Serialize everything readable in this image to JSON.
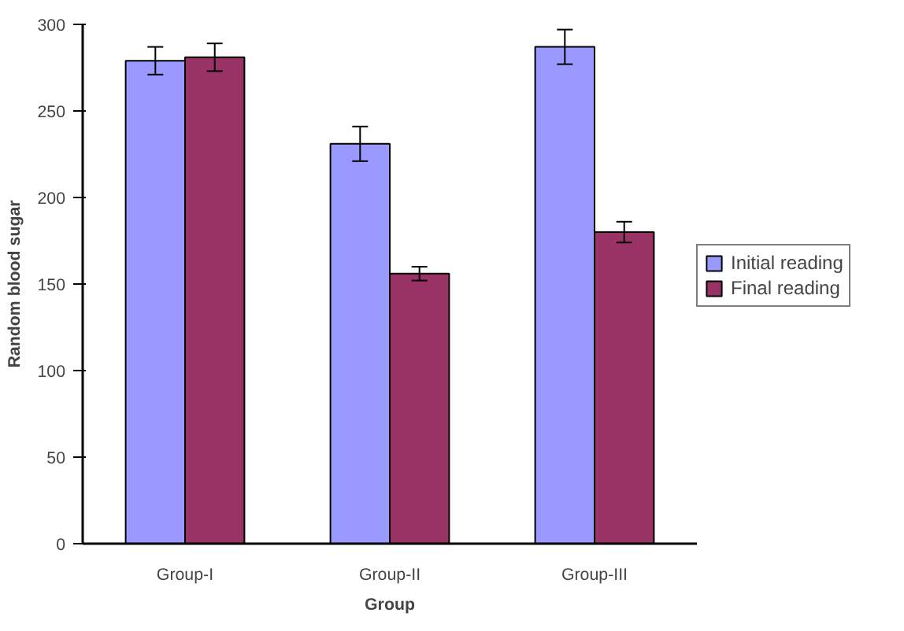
{
  "chart_data": {
    "type": "bar",
    "xlabel": "Group",
    "ylabel": "Random blood sugar",
    "categories": [
      "Group-I",
      "Group-II",
      "Group-III"
    ],
    "series": [
      {
        "name": "Initial reading",
        "color": "#9999ff",
        "values": [
          279,
          231,
          287
        ],
        "errors": [
          8,
          10,
          10
        ]
      },
      {
        "name": "Final reading",
        "color": "#993366",
        "values": [
          281,
          156,
          180
        ],
        "errors": [
          8,
          4,
          6
        ]
      }
    ],
    "ylim": [
      0,
      300
    ],
    "yticks": [
      0,
      50,
      100,
      150,
      200,
      250,
      300
    ],
    "grid": false,
    "legend": "right"
  }
}
